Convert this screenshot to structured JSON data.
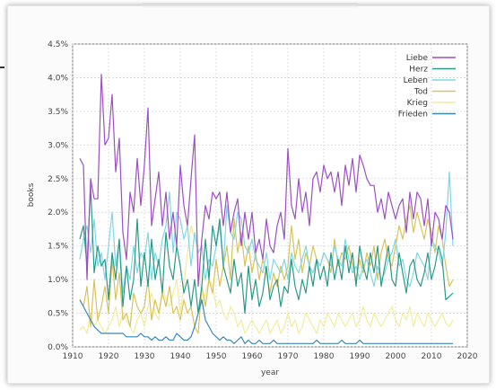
{
  "chart_data": {
    "type": "line",
    "title": "",
    "xlabel": "year",
    "ylabel": "books",
    "xlim": [
      1910,
      2020
    ],
    "ylim": [
      0,
      4.5
    ],
    "x_ticks": [
      "1910",
      "1920",
      "1930",
      "1940",
      "1950",
      "1960",
      "1970",
      "1980",
      "1990",
      "2000",
      "2010",
      "2020"
    ],
    "y_ticks": [
      "0.0%",
      "0.5%",
      "1.0%",
      "1.5%",
      "2.0%",
      "2.5%",
      "3.0%",
      "3.5%",
      "4.0%",
      "4.5%"
    ],
    "grid": true,
    "legend_position": "top-right",
    "x": [
      1912,
      1913,
      1914,
      1915,
      1916,
      1917,
      1918,
      1919,
      1920,
      1921,
      1922,
      1923,
      1924,
      1925,
      1926,
      1927,
      1928,
      1929,
      1930,
      1931,
      1932,
      1933,
      1934,
      1935,
      1936,
      1937,
      1938,
      1939,
      1940,
      1941,
      1942,
      1943,
      1944,
      1945,
      1946,
      1947,
      1948,
      1949,
      1950,
      1951,
      1952,
      1953,
      1954,
      1955,
      1956,
      1957,
      1958,
      1959,
      1960,
      1961,
      1962,
      1963,
      1964,
      1965,
      1966,
      1967,
      1968,
      1969,
      1970,
      1971,
      1972,
      1973,
      1974,
      1975,
      1976,
      1977,
      1978,
      1979,
      1980,
      1981,
      1982,
      1983,
      1984,
      1985,
      1986,
      1987,
      1988,
      1989,
      1990,
      1991,
      1992,
      1993,
      1994,
      1995,
      1996,
      1997,
      1998,
      1999,
      2000,
      2001,
      2002,
      2003,
      2004,
      2005,
      2006,
      2007,
      2008,
      2009,
      2010,
      2011,
      2012,
      2013,
      2014,
      2015,
      2016
    ],
    "series": [
      {
        "name": "Liebe",
        "color": "#9d4fc4",
        "values": [
          2.8,
          2.7,
          1.0,
          2.5,
          2.2,
          2.2,
          4.05,
          3.0,
          3.1,
          3.75,
          2.6,
          3.1,
          1.7,
          1.3,
          2.3,
          2.0,
          2.8,
          2.1,
          2.7,
          3.55,
          1.8,
          2.2,
          2.6,
          1.8,
          2.3,
          1.6,
          2.0,
          1.5,
          2.7,
          2.1,
          1.8,
          2.5,
          3.15,
          0.9,
          1.6,
          2.1,
          1.9,
          2.3,
          2.2,
          2.3,
          1.8,
          2.3,
          1.7,
          2.0,
          2.2,
          1.5,
          2.0,
          1.6,
          2.0,
          1.4,
          1.6,
          1.3,
          1.9,
          1.5,
          1.4,
          1.8,
          2.0,
          1.6,
          2.95,
          2.1,
          1.9,
          2.5,
          2.0,
          2.3,
          1.8,
          2.5,
          2.6,
          2.3,
          2.7,
          2.5,
          2.6,
          2.3,
          2.6,
          2.1,
          2.7,
          2.4,
          2.8,
          2.3,
          2.85,
          2.7,
          2.5,
          2.4,
          2.4,
          2.0,
          2.2,
          1.9,
          2.3,
          2.1,
          1.9,
          2.1,
          2.2,
          1.7,
          2.3,
          1.9,
          2.3,
          2.2,
          1.8,
          2.2,
          1.5,
          2.0,
          1.9,
          1.6,
          2.1,
          2.0,
          1.6
        ]
      },
      {
        "name": "Herz",
        "color": "#2a9a86",
        "values": [
          1.6,
          1.8,
          1.2,
          2.4,
          1.1,
          1.5,
          1.2,
          1.3,
          0.7,
          1.4,
          1.0,
          1.6,
          0.6,
          1.2,
          0.7,
          1.0,
          1.9,
          0.9,
          1.4,
          0.9,
          1.6,
          1.0,
          1.3,
          0.8,
          1.7,
          1.2,
          1.0,
          1.5,
          1.2,
          0.8,
          1.0,
          0.6,
          1.0,
          0.5,
          0.9,
          1.6,
          1.0,
          1.8,
          1.5,
          1.9,
          1.2,
          1.0,
          0.8,
          1.3,
          0.9,
          1.1,
          0.5,
          1.2,
          0.7,
          1.0,
          0.6,
          0.8,
          1.2,
          0.7,
          0.9,
          1.0,
          0.6,
          0.9,
          0.8,
          1.3,
          0.9,
          0.7,
          1.0,
          0.8,
          1.2,
          0.9,
          1.3,
          1.0,
          1.2,
          0.9,
          1.4,
          1.0,
          1.3,
          1.0,
          1.5,
          1.1,
          1.4,
          0.9,
          1.5,
          1.2,
          1.0,
          1.4,
          1.1,
          1.5,
          0.9,
          1.2,
          1.5,
          1.0,
          0.9,
          1.4,
          1.1,
          0.8,
          1.2,
          1.3,
          1.0,
          0.9,
          1.1,
          1.4,
          1.0,
          1.2,
          1.5,
          1.3,
          0.7,
          0.75,
          0.8
        ]
      },
      {
        "name": "Leben",
        "color": "#7fd7e6",
        "values": [
          1.3,
          1.6,
          1.8,
          1.4,
          1.9,
          1.2,
          1.4,
          1.0,
          1.5,
          2.0,
          1.2,
          1.6,
          0.8,
          1.2,
          1.0,
          1.5,
          1.1,
          1.4,
          1.3,
          1.7,
          1.0,
          1.4,
          1.2,
          1.6,
          1.8,
          2.3,
          1.4,
          2.0,
          1.9,
          1.6,
          1.8,
          1.2,
          1.7,
          1.4,
          1.5,
          1.0,
          1.3,
          1.2,
          1.5,
          1.8,
          1.2,
          2.1,
          1.7,
          1.6,
          2.0,
          1.9,
          1.5,
          1.4,
          1.6,
          1.3,
          1.2,
          1.1,
          1.4,
          1.0,
          1.3,
          1.2,
          1.1,
          1.3,
          1.0,
          1.4,
          1.2,
          1.1,
          1.3,
          1.5,
          1.2,
          1.1,
          1.3,
          1.2,
          1.4,
          1.3,
          1.2,
          1.5,
          1.3,
          1.2,
          1.6,
          1.3,
          1.1,
          1.2,
          1.0,
          1.2,
          1.3,
          1.1,
          0.9,
          1.2,
          1.0,
          1.1,
          1.3,
          1.4,
          1.6,
          1.2,
          1.3,
          1.0,
          0.9,
          1.1,
          1.4,
          1.3,
          1.2,
          1.0,
          1.6,
          1.5,
          1.4,
          1.2,
          1.7,
          2.6,
          1.5
        ]
      },
      {
        "name": "Tod",
        "color": "#d7c35a",
        "values": [
          0.7,
          0.6,
          0.9,
          0.3,
          1.0,
          0.4,
          0.6,
          0.9,
          0.5,
          1.3,
          0.7,
          1.1,
          0.4,
          0.5,
          0.3,
          0.8,
          0.6,
          0.5,
          0.6,
          1.0,
          0.4,
          0.7,
          0.5,
          0.8,
          0.6,
          0.9,
          0.5,
          0.6,
          0.4,
          0.7,
          0.5,
          0.6,
          0.3,
          0.2,
          0.9,
          0.6,
          1.0,
          0.8,
          1.3,
          0.9,
          1.2,
          1.5,
          1.0,
          1.9,
          1.4,
          1.7,
          1.2,
          1.5,
          1.1,
          1.4,
          1.0,
          1.3,
          1.1,
          0.8,
          1.1,
          0.9,
          1.2,
          1.0,
          1.2,
          1.8,
          1.3,
          1.6,
          1.1,
          1.4,
          1.2,
          1.5,
          1.3,
          1.2,
          1.4,
          1.3,
          1.1,
          1.6,
          1.2,
          1.4,
          1.3,
          1.5,
          1.2,
          1.0,
          1.3,
          1.1,
          1.4,
          1.2,
          1.5,
          1.0,
          1.4,
          1.6,
          1.3,
          1.2,
          1.5,
          1.8,
          1.6,
          1.9,
          2.1,
          1.7,
          2.0,
          1.8,
          1.6,
          1.9,
          1.7,
          1.4,
          1.8,
          1.6,
          1.2,
          0.9,
          1.0
        ]
      },
      {
        "name": "Krieg",
        "color": "#f2ec9a",
        "values": [
          0.25,
          0.3,
          0.2,
          0.5,
          0.3,
          0.4,
          0.3,
          0.2,
          0.3,
          0.4,
          0.6,
          0.3,
          0.5,
          0.4,
          0.3,
          0.2,
          0.4,
          0.5,
          0.3,
          0.6,
          0.8,
          0.5,
          0.4,
          0.9,
          0.7,
          0.6,
          0.8,
          1.0,
          0.5,
          0.9,
          1.4,
          1.8,
          1.6,
          1.5,
          0.6,
          0.8,
          1.0,
          0.9,
          0.6,
          0.7,
          0.5,
          0.4,
          0.6,
          0.5,
          0.3,
          0.4,
          0.2,
          0.3,
          0.4,
          0.3,
          0.2,
          0.3,
          0.4,
          0.2,
          0.3,
          0.4,
          0.2,
          0.3,
          0.5,
          0.3,
          0.4,
          0.2,
          0.3,
          0.5,
          0.4,
          0.3,
          0.2,
          0.4,
          0.3,
          0.5,
          0.4,
          0.3,
          0.5,
          0.4,
          0.3,
          0.4,
          0.5,
          0.3,
          0.4,
          0.6,
          0.4,
          0.3,
          0.5,
          0.4,
          0.3,
          0.4,
          0.5,
          0.6,
          0.4,
          0.3,
          0.5,
          0.4,
          0.6,
          0.3,
          0.5,
          0.4,
          0.3,
          0.5,
          0.4,
          0.3,
          0.4,
          0.5,
          0.35,
          0.3,
          0.4
        ]
      },
      {
        "name": "Frieden",
        "color": "#3b87b8",
        "values": [
          0.7,
          0.6,
          0.5,
          0.4,
          0.3,
          0.25,
          0.2,
          0.2,
          0.2,
          0.2,
          0.2,
          0.2,
          0.2,
          0.15,
          0.15,
          0.15,
          0.15,
          0.2,
          0.15,
          0.15,
          0.1,
          0.15,
          0.1,
          0.1,
          0.15,
          0.1,
          0.1,
          0.2,
          0.15,
          0.1,
          0.1,
          0.15,
          0.3,
          0.5,
          0.7,
          0.4,
          0.3,
          0.2,
          0.15,
          0.1,
          0.15,
          0.1,
          0.1,
          0.05,
          0.1,
          0.15,
          0.05,
          0.1,
          0.05,
          0.05,
          0.1,
          0.05,
          0.05,
          0.05,
          0.1,
          0.05,
          0.05,
          0.05,
          0.05,
          0.05,
          0.05,
          0.05,
          0.05,
          0.05,
          0.05,
          0.05,
          0.1,
          0.05,
          0.05,
          0.05,
          0.05,
          0.05,
          0.05,
          0.1,
          0.05,
          0.05,
          0.05,
          0.05,
          0.1,
          0.05,
          0.05,
          0.05,
          0.05,
          0.05,
          0.05,
          0.05,
          0.05,
          0.05,
          0.05,
          0.05,
          0.05,
          0.05,
          0.05,
          0.05,
          0.05,
          0.05,
          0.05,
          0.05,
          0.05,
          0.05,
          0.05,
          0.05,
          0.05,
          0.05,
          0.05
        ]
      }
    ]
  }
}
